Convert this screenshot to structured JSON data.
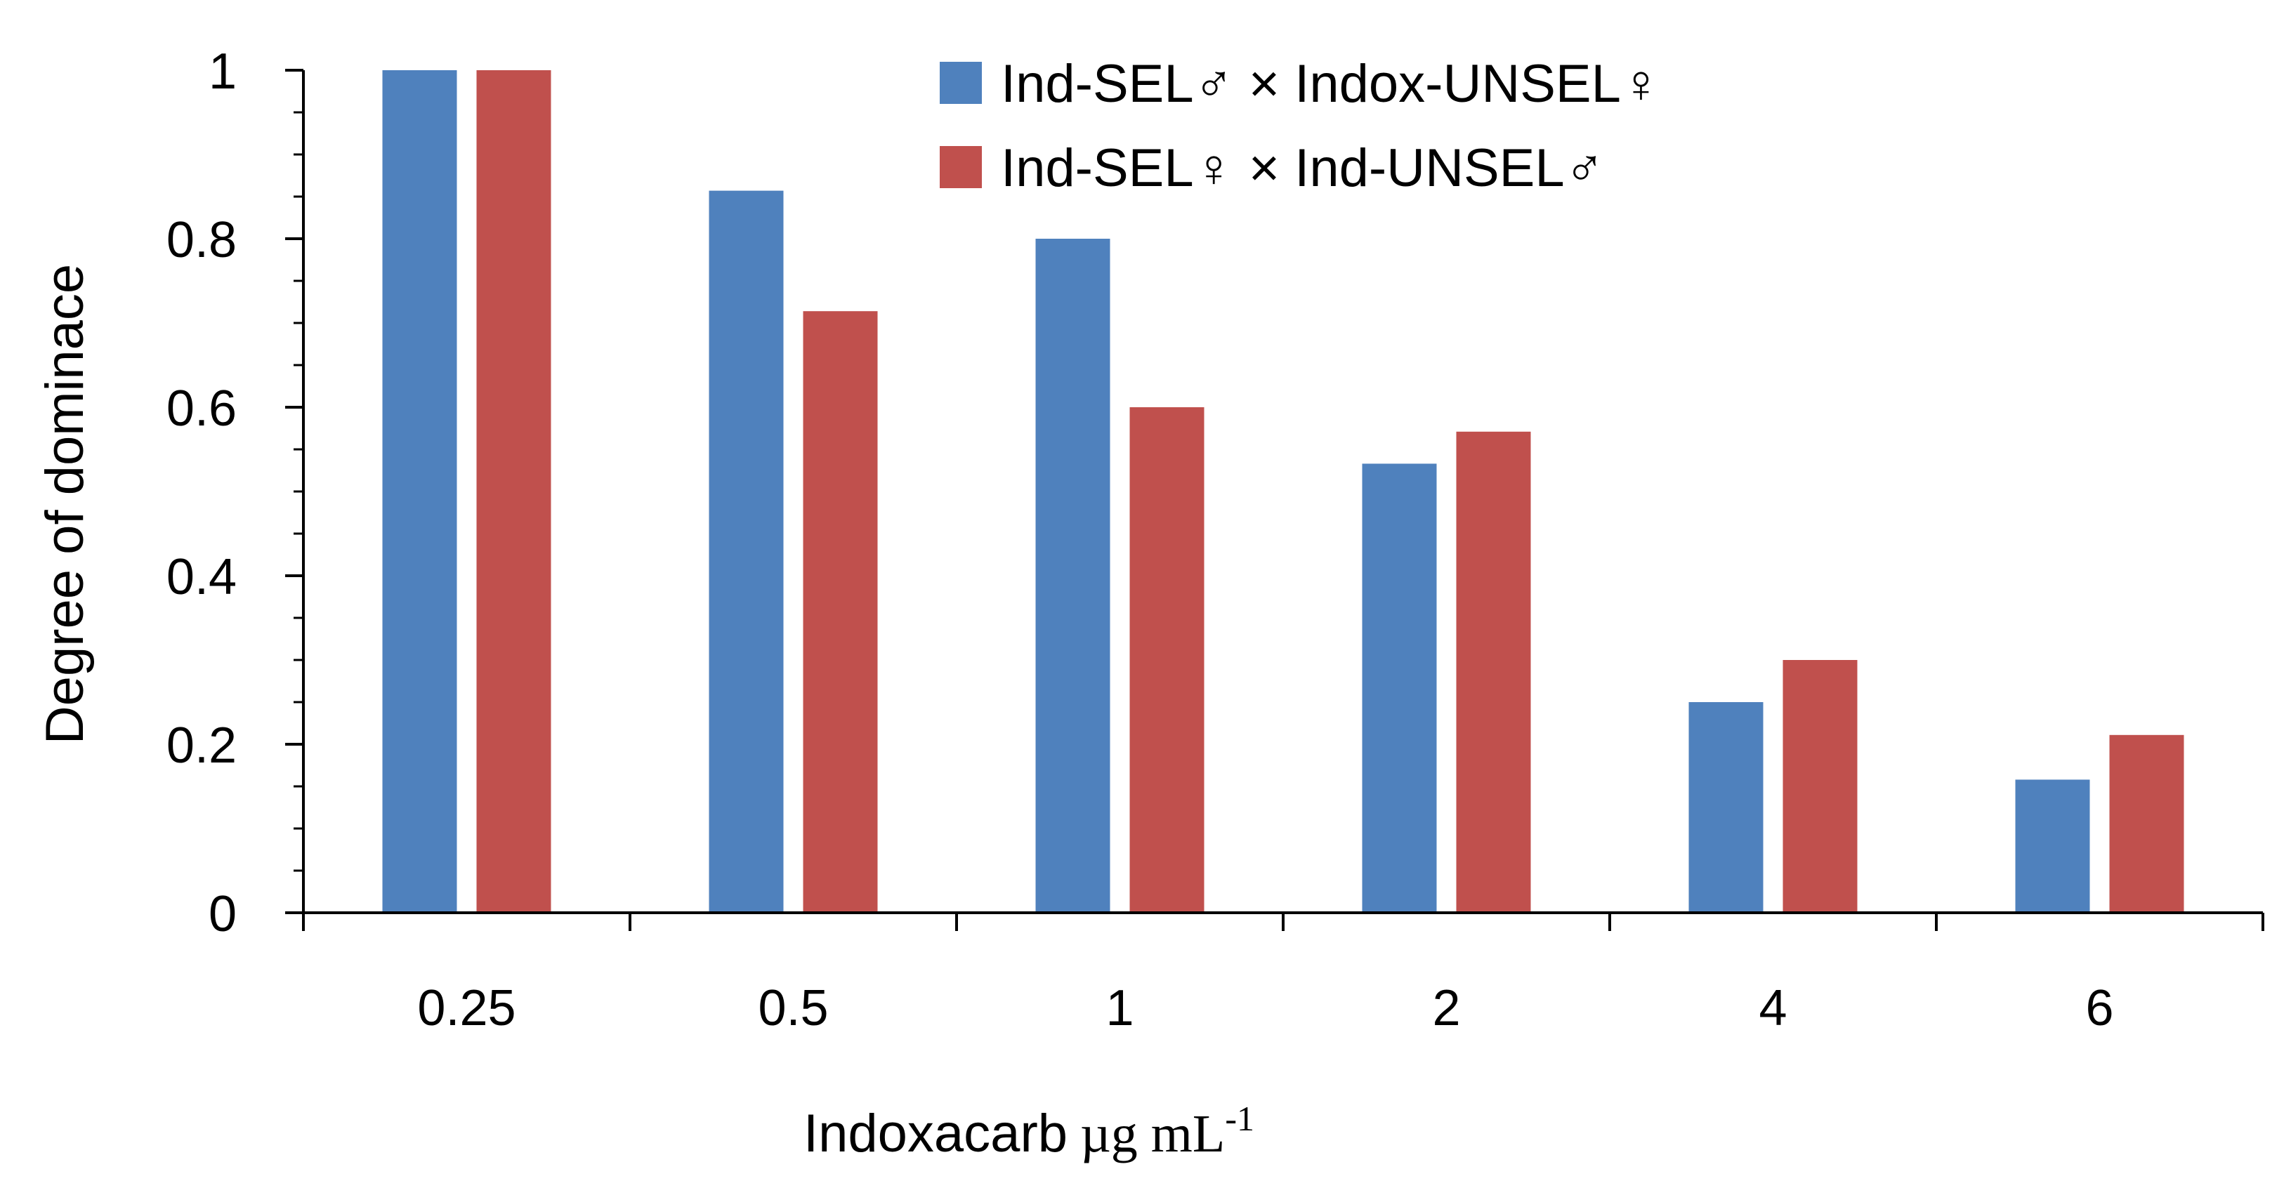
{
  "chart_data": {
    "type": "bar",
    "title": "",
    "categories": [
      "0.25",
      "0.5",
      "1",
      "2",
      "4",
      "6"
    ],
    "series": [
      {
        "name": "Ind-SEL♂ × Indox-UNSEL♀",
        "color": "#4f81bd",
        "values": [
          1.0,
          0.857,
          0.8,
          0.533,
          0.25,
          0.158
        ]
      },
      {
        "name": "Ind-SEL♀ × Ind-UNSEL♂",
        "color": "#c0504d",
        "values": [
          1.0,
          0.714,
          0.6,
          0.571,
          0.3,
          0.211
        ]
      }
    ],
    "xlabel": "Indoxacarb",
    "xlabel_unit": "µg mL",
    "xlabel_unit_exponent": "-1",
    "ylabel": "Degree of dominace",
    "ylim": [
      0,
      1
    ],
    "yticks": [
      "0",
      "0.2",
      "0.4",
      "0.6",
      "0.8",
      "1"
    ],
    "yminor_step": 0.05,
    "grid": false,
    "legend": "top-right"
  }
}
